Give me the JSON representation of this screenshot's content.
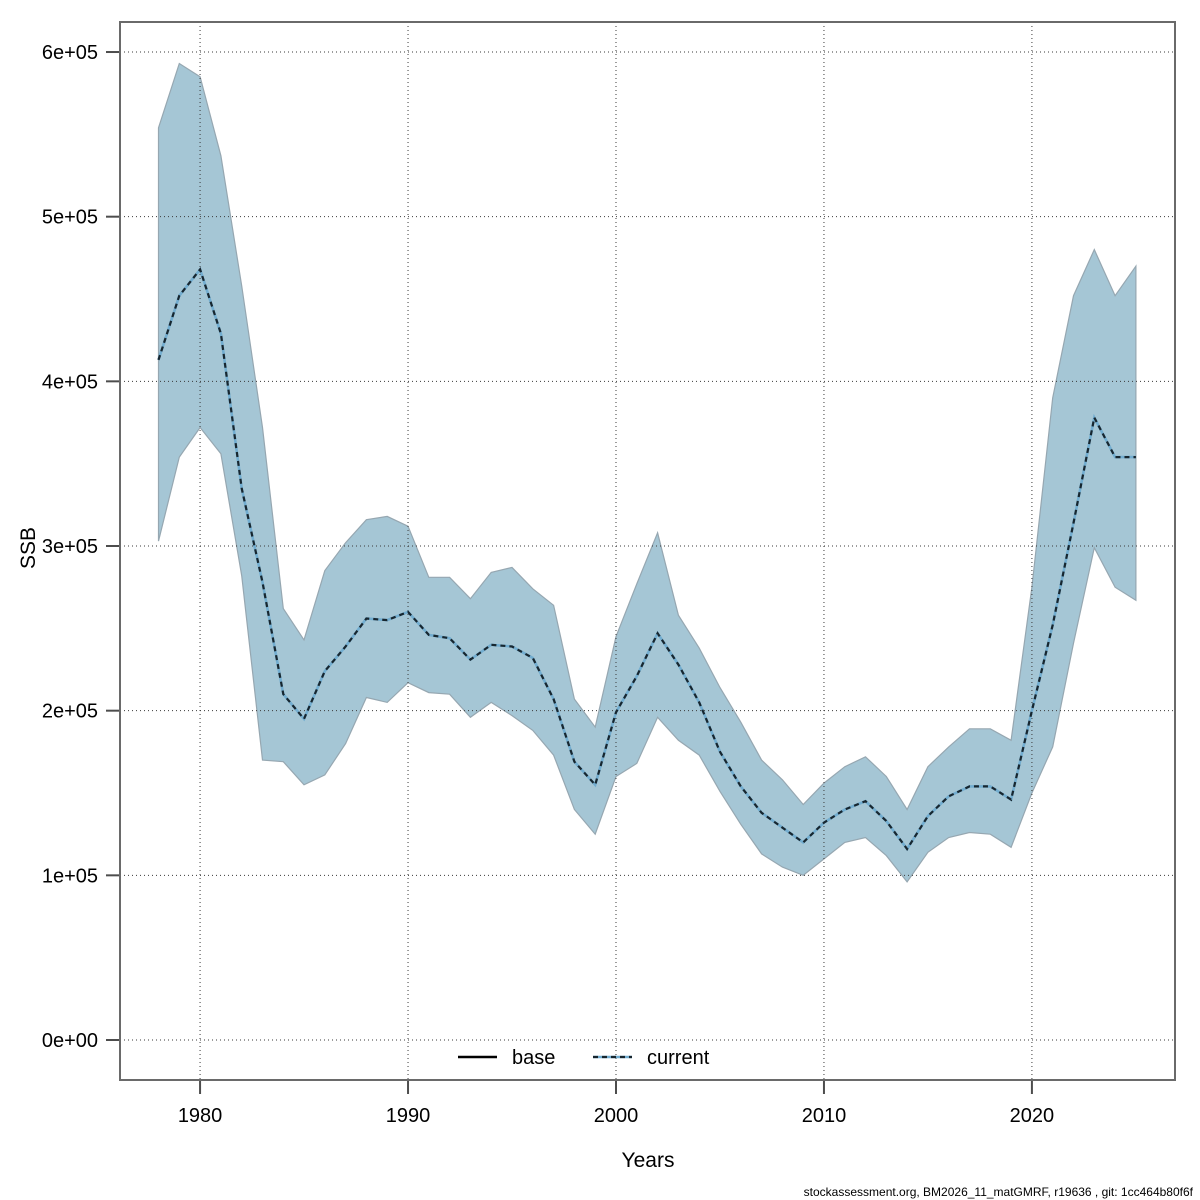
{
  "footer": "stockassessment.org, BM2026_11_matGMRF, r19636 , git: 1cc464b80f6f",
  "colors": {
    "background": "#ffffff",
    "band_fill": "#a5c6d5",
    "band_edge": "#96a7b1",
    "grid": "#3a3a3a",
    "frame": "#6a6a6a",
    "tick": "#4d4d4d",
    "text": "#000000",
    "current_line_under": "#72add0",
    "current_line_dash": "#17262f",
    "base_line": "#000000"
  },
  "chart_data": {
    "type": "area",
    "title": "",
    "xlabel": "Years",
    "ylabel": "SSB",
    "grid": true,
    "legend_position": "bottom-center",
    "xlim": [
      1976.15,
      2026.88
    ],
    "ylim": [
      -24292,
      618230
    ],
    "x_ticks": [
      {
        "label": "1980",
        "value": 1980
      },
      {
        "label": "1990",
        "value": 1990
      },
      {
        "label": "2000",
        "value": 2000
      },
      {
        "label": "2010",
        "value": 2010
      },
      {
        "label": "2020",
        "value": 2020
      }
    ],
    "y_ticks": [
      {
        "label": "0e+00",
        "value": 0
      },
      {
        "label": "1e+05",
        "value": 100000
      },
      {
        "label": "2e+05",
        "value": 200000
      },
      {
        "label": "3e+05",
        "value": 300000
      },
      {
        "label": "4e+05",
        "value": 400000
      },
      {
        "label": "5e+05",
        "value": 500000
      },
      {
        "label": "6e+05",
        "value": 600000
      }
    ],
    "legend": [
      {
        "label": "base",
        "style": "solid-black-line"
      },
      {
        "label": "current",
        "style": "blue-line-black-dashes"
      }
    ],
    "years": [
      1978,
      1979,
      1980,
      1981,
      1982,
      1983,
      1984,
      1985,
      1986,
      1987,
      1988,
      1989,
      1990,
      1991,
      1992,
      1993,
      1994,
      1995,
      1996,
      1997,
      1998,
      1999,
      2000,
      2001,
      2002,
      2003,
      2004,
      2005,
      2006,
      2007,
      2008,
      2009,
      2010,
      2011,
      2012,
      2013,
      2014,
      2015,
      2016,
      2017,
      2018,
      2019,
      2020,
      2021,
      2022,
      2023,
      2024,
      2025
    ],
    "series": [
      {
        "name": "current",
        "values": [
          413000,
          452000,
          468000,
          429000,
          335000,
          278000,
          210000,
          195000,
          224000,
          239000,
          256000,
          255000,
          260000,
          246000,
          244000,
          231000,
          240000,
          239000,
          232000,
          207000,
          169000,
          155000,
          199000,
          221000,
          247000,
          228000,
          205000,
          175000,
          154000,
          138000,
          129000,
          120000,
          132000,
          140000,
          145000,
          133000,
          116000,
          136000,
          148000,
          154000,
          154000,
          146000,
          200000,
          252000,
          314000,
          378000,
          354000,
          354000
        ]
      }
    ],
    "band": {
      "name": "confidence-interval",
      "high": [
        554000,
        593000,
        585000,
        537000,
        458000,
        372000,
        262000,
        243000,
        285000,
        302000,
        316000,
        318000,
        312000,
        281000,
        281000,
        268000,
        284000,
        287000,
        274000,
        264000,
        207000,
        190000,
        245000,
        277000,
        308000,
        258000,
        238000,
        214000,
        193000,
        170000,
        158000,
        143000,
        156000,
        166000,
        172000,
        160000,
        140000,
        166000,
        178000,
        189000,
        189000,
        182000,
        275000,
        390000,
        452000,
        480000,
        452000,
        470000
      ],
      "low": [
        303000,
        354000,
        372000,
        356000,
        282000,
        170000,
        169000,
        155000,
        161000,
        180000,
        208000,
        205000,
        217000,
        211000,
        210000,
        196000,
        205000,
        197000,
        188000,
        173000,
        140000,
        125000,
        160000,
        168000,
        196000,
        182000,
        173000,
        151000,
        131000,
        113000,
        105000,
        100000,
        110000,
        120000,
        123000,
        112000,
        96000,
        114000,
        123000,
        126000,
        125000,
        117000,
        150000,
        178000,
        241000,
        299000,
        275000,
        267000
      ]
    }
  }
}
